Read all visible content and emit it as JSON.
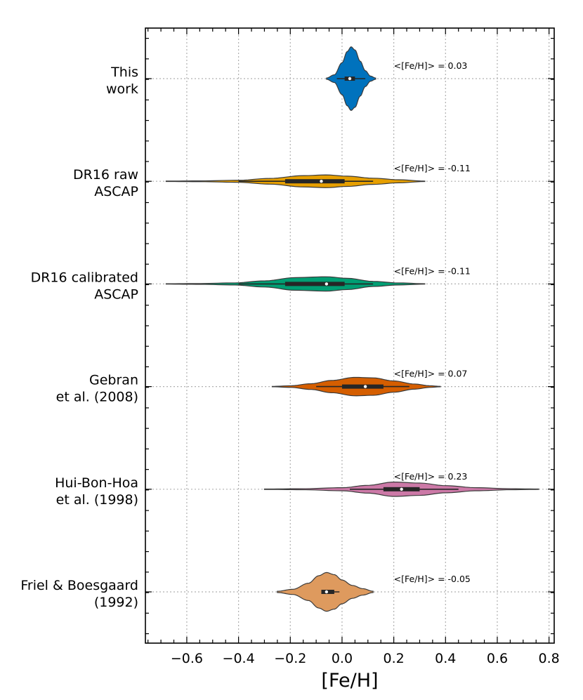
{
  "chart_data": {
    "type": "violin",
    "xlabel": "[Fe/H]",
    "ylabel": "",
    "xlim": [
      -0.76,
      0.82
    ],
    "grid": true,
    "orientation": "horizontal",
    "xticks": [
      -0.6,
      -0.4,
      -0.2,
      0.0,
      0.2,
      0.4,
      0.6,
      0.8
    ],
    "xtick_labels": [
      "−0.6",
      "−0.4",
      "−0.2",
      "0.0",
      "0.2",
      "0.4",
      "0.6",
      "0.8"
    ],
    "series": [
      {
        "label_lines": [
          "This",
          "work"
        ],
        "color": "#0072bd",
        "mean_label": "<[Fe/H]> = 0.03",
        "mean": 0.03,
        "min": -0.06,
        "max": 0.13,
        "q1": 0.01,
        "median": 0.03,
        "q3": 0.05,
        "whisker_low": -0.02,
        "whisker_high": 0.09,
        "density": [
          [
            -0.06,
            0.02
          ],
          [
            -0.03,
            0.12
          ],
          [
            0.0,
            0.5
          ],
          [
            0.02,
            0.85
          ],
          [
            0.035,
            1.0
          ],
          [
            0.05,
            0.9
          ],
          [
            0.07,
            0.55
          ],
          [
            0.09,
            0.25
          ],
          [
            0.11,
            0.08
          ],
          [
            0.13,
            0.02
          ]
        ],
        "scale": 0.62
      },
      {
        "label_lines": [
          "DR16 raw",
          "ASCAP"
        ],
        "color": "#e69f00",
        "mean_label": "<[Fe/H]> = -0.11",
        "mean": -0.11,
        "min": -0.68,
        "max": 0.32,
        "q1": -0.22,
        "median": -0.08,
        "q3": 0.01,
        "whisker_low": -0.4,
        "whisker_high": 0.12,
        "density": [
          [
            -0.68,
            0.02
          ],
          [
            -0.55,
            0.04
          ],
          [
            -0.4,
            0.1
          ],
          [
            -0.28,
            0.28
          ],
          [
            -0.15,
            0.55
          ],
          [
            -0.06,
            0.62
          ],
          [
            0.02,
            0.5
          ],
          [
            0.12,
            0.3
          ],
          [
            0.22,
            0.15
          ],
          [
            0.32,
            0.02
          ]
        ],
        "scale": 0.2
      },
      {
        "label_lines": [
          "DR16 calibrated",
          "ASCAP"
        ],
        "color": "#009e73",
        "mean_label": "<[Fe/H]> = -0.11",
        "mean": -0.11,
        "min": -0.68,
        "max": 0.32,
        "q1": -0.22,
        "median": -0.06,
        "q3": 0.01,
        "whisker_low": -0.4,
        "whisker_high": 0.12,
        "density": [
          [
            -0.68,
            0.02
          ],
          [
            -0.55,
            0.04
          ],
          [
            -0.42,
            0.1
          ],
          [
            -0.3,
            0.3
          ],
          [
            -0.18,
            0.62
          ],
          [
            -0.06,
            0.7
          ],
          [
            0.02,
            0.55
          ],
          [
            0.12,
            0.25
          ],
          [
            0.22,
            0.1
          ],
          [
            0.32,
            0.02
          ]
        ],
        "scale": 0.2
      },
      {
        "label_lines": [
          "Gebran",
          "et al. (2008)"
        ],
        "color": "#d55e00",
        "mean_label": "<[Fe/H]> = 0.07",
        "mean": 0.07,
        "min": -0.27,
        "max": 0.38,
        "q1": 0.0,
        "median": 0.09,
        "q3": 0.16,
        "whisker_low": -0.1,
        "whisker_high": 0.26,
        "density": [
          [
            -0.27,
            0.02
          ],
          [
            -0.2,
            0.08
          ],
          [
            -0.12,
            0.28
          ],
          [
            -0.04,
            0.6
          ],
          [
            0.05,
            0.9
          ],
          [
            0.12,
            0.85
          ],
          [
            0.2,
            0.55
          ],
          [
            0.28,
            0.25
          ],
          [
            0.34,
            0.08
          ],
          [
            0.38,
            0.02
          ]
        ],
        "scale": 0.2
      },
      {
        "label_lines": [
          "Hui-Bon-Hoa",
          "et al. (1998)"
        ],
        "color": "#cc79a7",
        "mean_label": "<[Fe/H]> = 0.23",
        "mean": 0.23,
        "min": -0.3,
        "max": 0.76,
        "q1": 0.16,
        "median": 0.23,
        "q3": 0.3,
        "whisker_low": 0.03,
        "whisker_high": 0.45,
        "density": [
          [
            -0.3,
            0.02
          ],
          [
            -0.15,
            0.05
          ],
          [
            0.0,
            0.15
          ],
          [
            0.1,
            0.38
          ],
          [
            0.2,
            0.7
          ],
          [
            0.3,
            0.6
          ],
          [
            0.4,
            0.35
          ],
          [
            0.52,
            0.15
          ],
          [
            0.65,
            0.05
          ],
          [
            0.76,
            0.02
          ]
        ],
        "scale": 0.2
      },
      {
        "label_lines": [
          "Friel & Boesgaard",
          "(1992)"
        ],
        "color": "#de9a5e",
        "mean_label": "<[Fe/H]> = -0.05",
        "mean": -0.05,
        "min": -0.25,
        "max": 0.12,
        "q1": -0.08,
        "median": -0.06,
        "q3": -0.03,
        "whisker_low": -0.08,
        "whisker_high": -0.01,
        "density": [
          [
            -0.25,
            0.03
          ],
          [
            -0.19,
            0.12
          ],
          [
            -0.13,
            0.4
          ],
          [
            -0.09,
            0.75
          ],
          [
            -0.06,
            0.9
          ],
          [
            -0.03,
            0.8
          ],
          [
            0.0,
            0.55
          ],
          [
            0.04,
            0.3
          ],
          [
            0.08,
            0.15
          ],
          [
            0.12,
            0.03
          ]
        ],
        "scale": 0.42
      }
    ]
  }
}
